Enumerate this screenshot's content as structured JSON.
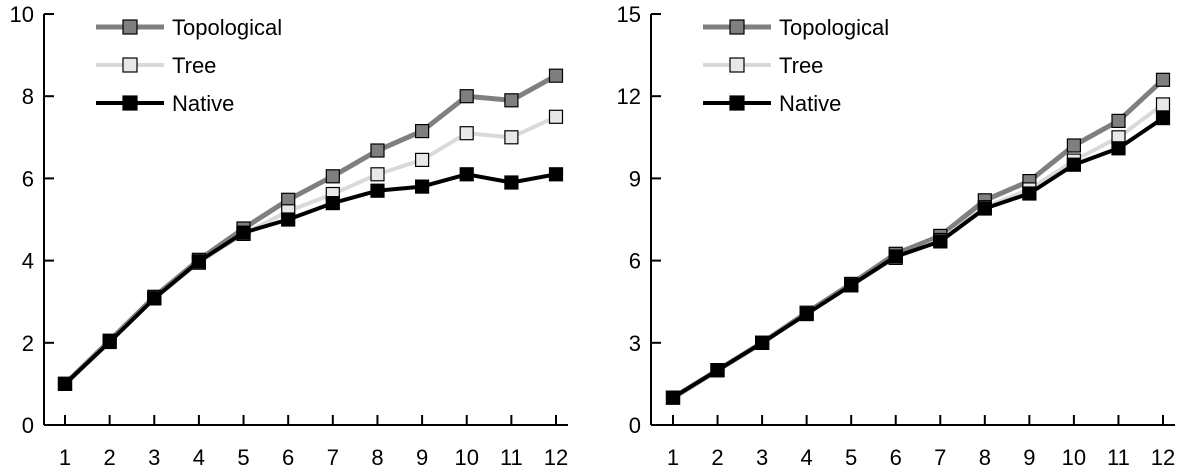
{
  "chart_data": [
    {
      "type": "line",
      "x": [
        1,
        2,
        3,
        4,
        5,
        6,
        7,
        8,
        9,
        10,
        11,
        12
      ],
      "xticks": [
        "1",
        "2",
        "3",
        "4",
        "5",
        "6",
        "7",
        "8",
        "9",
        "10",
        "11",
        "12"
      ],
      "ylim": [
        0,
        10
      ],
      "yticks": [
        0,
        2,
        4,
        6,
        8,
        10
      ],
      "legend_position": "top-left",
      "grid": false,
      "series": [
        {
          "name": "Topological",
          "color": "#7f7f7f",
          "marker_fill": "#7f7f7f",
          "values": [
            1.0,
            2.05,
            3.12,
            4.02,
            4.78,
            5.48,
            6.05,
            6.68,
            7.15,
            8.0,
            7.9,
            8.5
          ]
        },
        {
          "name": "Tree",
          "color": "#d9d9d9",
          "marker_fill": "#e8e8e8",
          "values": [
            1.0,
            2.03,
            3.08,
            3.95,
            4.65,
            5.2,
            5.62,
            6.1,
            6.45,
            7.1,
            7.0,
            7.5
          ]
        },
        {
          "name": "Native",
          "color": "#000000",
          "marker_fill": "#000000",
          "values": [
            1.0,
            2.02,
            3.08,
            3.98,
            4.68,
            5.0,
            5.4,
            5.7,
            5.8,
            6.1,
            5.9,
            6.1
          ]
        }
      ]
    },
    {
      "type": "line",
      "x": [
        1,
        2,
        3,
        4,
        5,
        6,
        7,
        8,
        9,
        10,
        11,
        12
      ],
      "xticks": [
        "1",
        "2",
        "3",
        "4",
        "5",
        "6",
        "7",
        "8",
        "9",
        "10",
        "11",
        "12"
      ],
      "ylim": [
        0,
        15
      ],
      "yticks": [
        0,
        3,
        6,
        9,
        12,
        15
      ],
      "legend_position": "top-left",
      "grid": false,
      "series": [
        {
          "name": "Topological",
          "color": "#7f7f7f",
          "marker_fill": "#7f7f7f",
          "values": [
            1.0,
            2.0,
            3.0,
            4.1,
            5.15,
            6.25,
            6.9,
            8.2,
            8.9,
            10.2,
            11.1,
            12.6
          ]
        },
        {
          "name": "Tree",
          "color": "#d9d9d9",
          "marker_fill": "#e8e8e8",
          "values": [
            1.0,
            2.0,
            3.0,
            4.05,
            5.1,
            6.1,
            6.75,
            7.95,
            8.6,
            9.65,
            10.5,
            11.7
          ]
        },
        {
          "name": "Native",
          "color": "#000000",
          "marker_fill": "#000000",
          "values": [
            1.0,
            2.0,
            3.0,
            4.05,
            5.1,
            6.15,
            6.7,
            7.9,
            8.45,
            9.5,
            10.1,
            11.2
          ]
        }
      ]
    }
  ]
}
